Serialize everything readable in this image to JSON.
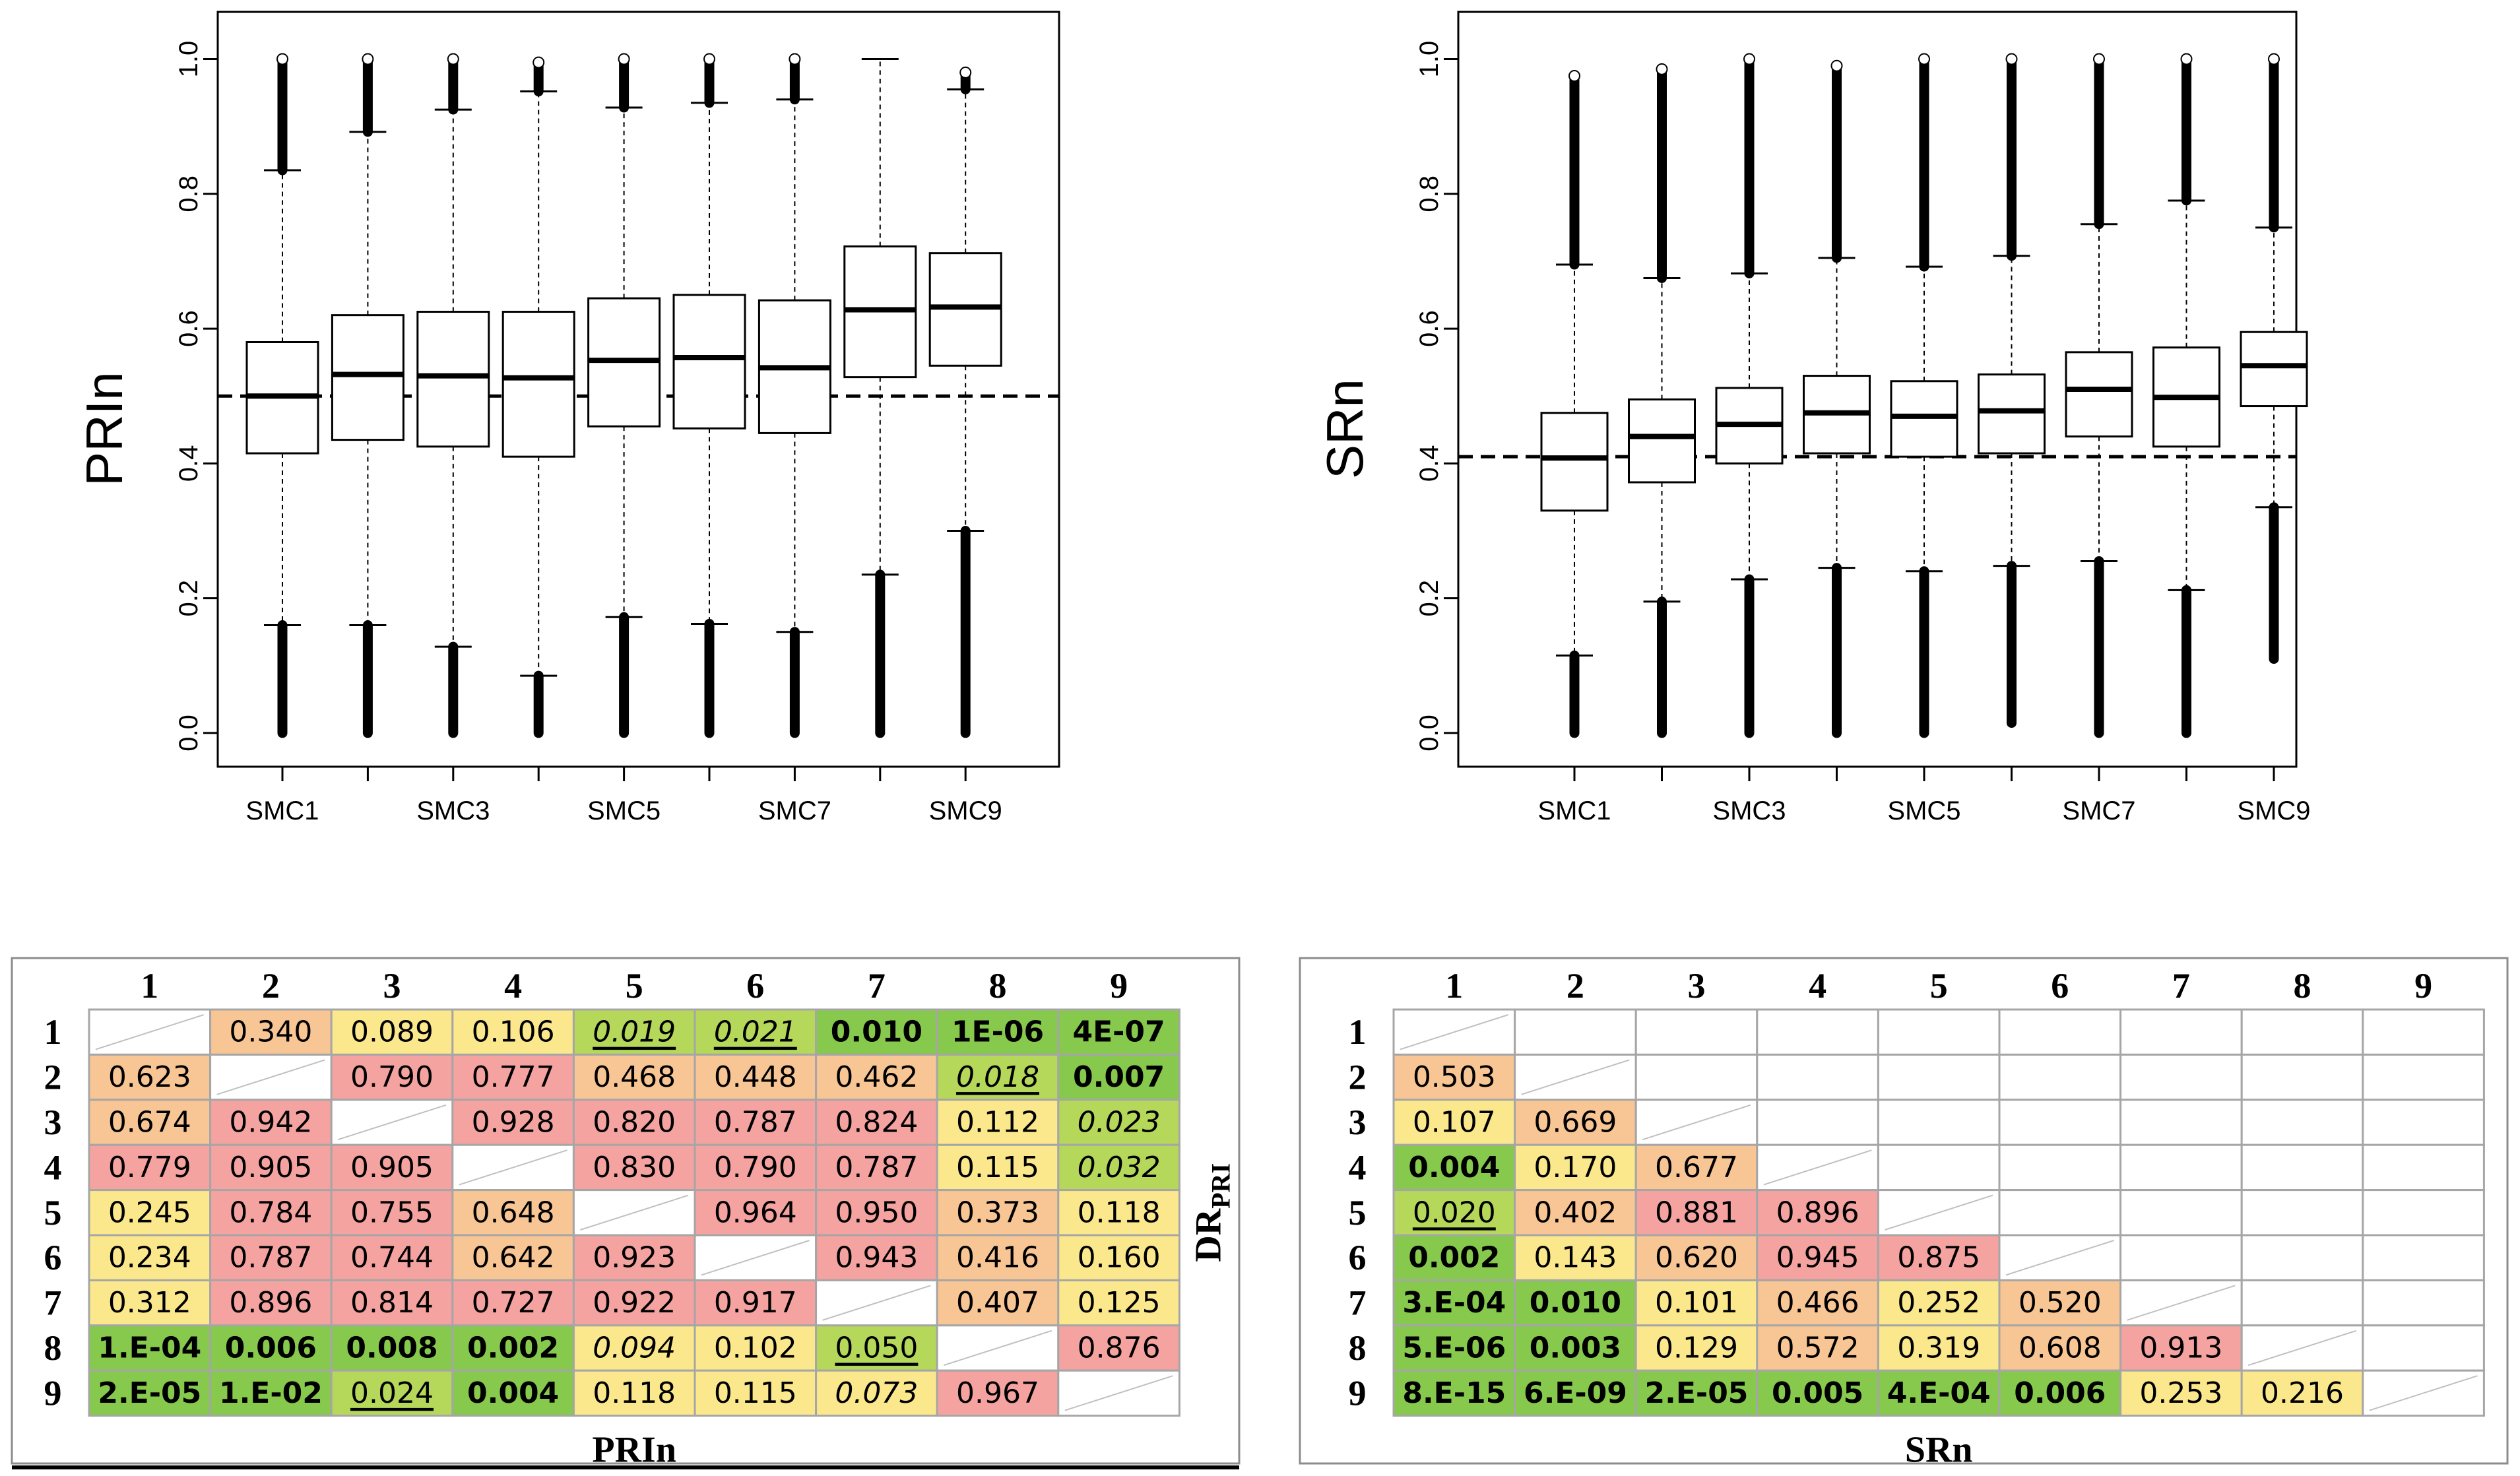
{
  "colors": {
    "red": "#f4a3a0",
    "orange": "#f8c594",
    "yellow": "#fce88c",
    "green": "#86c94c",
    "green_light": "#b5d85a",
    "white": "#ffffff",
    "grid": "#a6a6a6"
  },
  "chart_data": [
    {
      "type": "boxplot",
      "ylabel": "PRIn",
      "ylim": [
        -0.05,
        1.07
      ],
      "yticks": [
        "0.0",
        "0.2",
        "0.4",
        "0.6",
        "0.8",
        "1.0"
      ],
      "xtick_labels": [
        "SMC1",
        "",
        "SMC3",
        "",
        "SMC5",
        "",
        "SMC7",
        "",
        "SMC9"
      ],
      "reference_line": 0.5,
      "boxes": [
        {
          "q1": 0.415,
          "median": 0.5,
          "q3": 0.58,
          "whisker_low": 0.16,
          "whisker_high": 0.835,
          "out_low": [
            0.0,
            0.16
          ],
          "out_high": [
            0.835,
            1.0
          ]
        },
        {
          "q1": 0.435,
          "median": 0.532,
          "q3": 0.62,
          "whisker_low": 0.16,
          "whisker_high": 0.892,
          "out_low": [
            0.0,
            0.16
          ],
          "out_high": [
            0.892,
            1.0
          ]
        },
        {
          "q1": 0.425,
          "median": 0.53,
          "q3": 0.625,
          "whisker_low": 0.128,
          "whisker_high": 0.925,
          "out_low": [
            0.0,
            0.128
          ],
          "out_high": [
            0.925,
            1.0
          ]
        },
        {
          "q1": 0.41,
          "median": 0.527,
          "q3": 0.625,
          "whisker_low": 0.085,
          "whisker_high": 0.952,
          "out_low": [
            0.0,
            0.085
          ],
          "out_high": [
            0.952,
            0.995
          ]
        },
        {
          "q1": 0.455,
          "median": 0.553,
          "q3": 0.645,
          "whisker_low": 0.172,
          "whisker_high": 0.928,
          "out_low": [
            0.0,
            0.172
          ],
          "out_high": [
            0.928,
            1.0
          ]
        },
        {
          "q1": 0.452,
          "median": 0.557,
          "q3": 0.65,
          "whisker_low": 0.162,
          "whisker_high": 0.935,
          "out_low": [
            0.0,
            0.162
          ],
          "out_high": [
            0.935,
            1.0
          ]
        },
        {
          "q1": 0.445,
          "median": 0.542,
          "q3": 0.642,
          "whisker_low": 0.15,
          "whisker_high": 0.94,
          "out_low": [
            0.0,
            0.15
          ],
          "out_high": [
            0.94,
            1.0
          ]
        },
        {
          "q1": 0.528,
          "median": 0.628,
          "q3": 0.722,
          "whisker_low": 0.235,
          "whisker_high": 1.0,
          "out_low": [
            0.0,
            0.235
          ],
          "out_high": []
        },
        {
          "q1": 0.545,
          "median": 0.632,
          "q3": 0.712,
          "whisker_low": 0.3,
          "whisker_high": 0.955,
          "out_low": [
            0.0,
            0.3
          ],
          "out_high": [
            0.955,
            0.98
          ]
        }
      ]
    },
    {
      "type": "boxplot",
      "ylabel": "SRn",
      "ylim": [
        -0.05,
        1.07
      ],
      "yticks": [
        "0.0",
        "0.2",
        "0.4",
        "0.6",
        "0.8",
        "1.0"
      ],
      "xtick_labels": [
        "SMC1",
        "",
        "SMC3",
        "",
        "SMC5",
        "",
        "SMC7",
        "",
        "SMC9"
      ],
      "reference_line": 0.41,
      "boxes": [
        {
          "q1": 0.33,
          "median": 0.408,
          "q3": 0.475,
          "whisker_low": 0.115,
          "whisker_high": 0.695,
          "out_low": [
            0.0,
            0.115
          ],
          "out_high": [
            0.695,
            0.975
          ]
        },
        {
          "q1": 0.372,
          "median": 0.44,
          "q3": 0.495,
          "whisker_low": 0.195,
          "whisker_high": 0.675,
          "out_low": [
            0.0,
            0.195
          ],
          "out_high": [
            0.675,
            0.985
          ]
        },
        {
          "q1": 0.4,
          "median": 0.458,
          "q3": 0.512,
          "whisker_low": 0.228,
          "whisker_high": 0.682,
          "out_low": [
            0.0,
            0.228
          ],
          "out_high": [
            0.682,
            1.0
          ]
        },
        {
          "q1": 0.415,
          "median": 0.475,
          "q3": 0.53,
          "whisker_low": 0.245,
          "whisker_high": 0.705,
          "out_low": [
            0.0,
            0.245
          ],
          "out_high": [
            0.705,
            0.99
          ]
        },
        {
          "q1": 0.41,
          "median": 0.47,
          "q3": 0.522,
          "whisker_low": 0.24,
          "whisker_high": 0.692,
          "out_low": [
            0.0,
            0.24
          ],
          "out_high": [
            0.692,
            1.0
          ]
        },
        {
          "q1": 0.415,
          "median": 0.478,
          "q3": 0.532,
          "whisker_low": 0.248,
          "whisker_high": 0.708,
          "out_low": [
            0.015,
            0.248
          ],
          "out_high": [
            0.708,
            1.0
          ]
        },
        {
          "q1": 0.44,
          "median": 0.51,
          "q3": 0.565,
          "whisker_low": 0.255,
          "whisker_high": 0.755,
          "out_low": [
            0.0,
            0.255
          ],
          "out_high": [
            0.755,
            1.0
          ]
        },
        {
          "q1": 0.425,
          "median": 0.498,
          "q3": 0.572,
          "whisker_low": 0.212,
          "whisker_high": 0.79,
          "out_low": [
            0.0,
            0.212
          ],
          "out_high": [
            0.79,
            1.0
          ]
        },
        {
          "q1": 0.485,
          "median": 0.545,
          "q3": 0.595,
          "whisker_low": 0.335,
          "whisker_high": 0.75,
          "out_low": [
            0.11,
            0.335
          ],
          "out_high": [
            0.75,
            1.0
          ]
        }
      ]
    },
    {
      "type": "table",
      "title": "",
      "caption": "PRIn",
      "side_label": "DR",
      "side_label_sub": "PRI",
      "col_headers": [
        "1",
        "2",
        "3",
        "4",
        "5",
        "6",
        "7",
        "8",
        "9"
      ],
      "row_headers": [
        "1",
        "2",
        "3",
        "4",
        "5",
        "6",
        "7",
        "8",
        "9"
      ],
      "rows": [
        [
          {
            "diag": true
          },
          {
            "v": "0.340",
            "c": "orange"
          },
          {
            "v": "0.089",
            "c": "yellow"
          },
          {
            "v": "0.106",
            "c": "yellow"
          },
          {
            "v": "0.019",
            "c": "green_light",
            "i": true,
            "u": true
          },
          {
            "v": "0.021",
            "c": "green_light",
            "i": true,
            "u": true
          },
          {
            "v": "0.010",
            "c": "green",
            "b": true
          },
          {
            "v": "1E-06",
            "c": "green",
            "b": true
          },
          {
            "v": "4E-07",
            "c": "green",
            "b": true
          }
        ],
        [
          {
            "v": "0.623",
            "c": "orange"
          },
          {
            "diag": true
          },
          {
            "v": "0.790",
            "c": "red"
          },
          {
            "v": "0.777",
            "c": "red"
          },
          {
            "v": "0.468",
            "c": "orange"
          },
          {
            "v": "0.448",
            "c": "orange"
          },
          {
            "v": "0.462",
            "c": "orange"
          },
          {
            "v": "0.018",
            "c": "green_light",
            "i": true,
            "u": true
          },
          {
            "v": "0.007",
            "c": "green",
            "b": true
          }
        ],
        [
          {
            "v": "0.674",
            "c": "orange"
          },
          {
            "v": "0.942",
            "c": "red"
          },
          {
            "diag": true
          },
          {
            "v": "0.928",
            "c": "red"
          },
          {
            "v": "0.820",
            "c": "red"
          },
          {
            "v": "0.787",
            "c": "red"
          },
          {
            "v": "0.824",
            "c": "red"
          },
          {
            "v": "0.112",
            "c": "yellow"
          },
          {
            "v": "0.023",
            "c": "green_light",
            "i": true
          }
        ],
        [
          {
            "v": "0.779",
            "c": "red"
          },
          {
            "v": "0.905",
            "c": "red"
          },
          {
            "v": "0.905",
            "c": "red"
          },
          {
            "diag": true
          },
          {
            "v": "0.830",
            "c": "red"
          },
          {
            "v": "0.790",
            "c": "red"
          },
          {
            "v": "0.787",
            "c": "red"
          },
          {
            "v": "0.115",
            "c": "yellow"
          },
          {
            "v": "0.032",
            "c": "green_light",
            "i": true
          }
        ],
        [
          {
            "v": "0.245",
            "c": "yellow"
          },
          {
            "v": "0.784",
            "c": "red"
          },
          {
            "v": "0.755",
            "c": "red"
          },
          {
            "v": "0.648",
            "c": "orange"
          },
          {
            "diag": true
          },
          {
            "v": "0.964",
            "c": "red"
          },
          {
            "v": "0.950",
            "c": "red"
          },
          {
            "v": "0.373",
            "c": "orange"
          },
          {
            "v": "0.118",
            "c": "yellow"
          }
        ],
        [
          {
            "v": "0.234",
            "c": "yellow"
          },
          {
            "v": "0.787",
            "c": "red"
          },
          {
            "v": "0.744",
            "c": "red"
          },
          {
            "v": "0.642",
            "c": "orange"
          },
          {
            "v": "0.923",
            "c": "red"
          },
          {
            "diag": true
          },
          {
            "v": "0.943",
            "c": "red"
          },
          {
            "v": "0.416",
            "c": "orange"
          },
          {
            "v": "0.160",
            "c": "yellow"
          }
        ],
        [
          {
            "v": "0.312",
            "c": "yellow"
          },
          {
            "v": "0.896",
            "c": "red"
          },
          {
            "v": "0.814",
            "c": "red"
          },
          {
            "v": "0.727",
            "c": "red"
          },
          {
            "v": "0.922",
            "c": "red"
          },
          {
            "v": "0.917",
            "c": "red"
          },
          {
            "diag": true
          },
          {
            "v": "0.407",
            "c": "orange"
          },
          {
            "v": "0.125",
            "c": "yellow"
          }
        ],
        [
          {
            "v": "1.E-04",
            "c": "green",
            "b": true
          },
          {
            "v": "0.006",
            "c": "green",
            "b": true
          },
          {
            "v": "0.008",
            "c": "green",
            "b": true
          },
          {
            "v": "0.002",
            "c": "green",
            "b": true
          },
          {
            "v": "0.094",
            "c": "yellow",
            "i": true
          },
          {
            "v": "0.102",
            "c": "yellow"
          },
          {
            "v": "0.050",
            "c": "green_light",
            "u": true
          },
          {
            "diag": true
          },
          {
            "v": "0.876",
            "c": "red"
          }
        ],
        [
          {
            "v": "2.E-05",
            "c": "green",
            "b": true
          },
          {
            "v": "1.E-02",
            "c": "green",
            "b": true
          },
          {
            "v": "0.024",
            "c": "green_light",
            "u": true
          },
          {
            "v": "0.004",
            "c": "green",
            "b": true
          },
          {
            "v": "0.118",
            "c": "yellow"
          },
          {
            "v": "0.115",
            "c": "yellow"
          },
          {
            "v": "0.073",
            "c": "yellow",
            "i": true
          },
          {
            "v": "0.967",
            "c": "red"
          },
          {
            "diag": true
          }
        ]
      ]
    },
    {
      "type": "table",
      "title": "",
      "caption": "SRn",
      "col_headers": [
        "1",
        "2",
        "3",
        "4",
        "5",
        "6",
        "7",
        "8",
        "9"
      ],
      "row_headers": [
        "1",
        "2",
        "3",
        "4",
        "5",
        "6",
        "7",
        "8",
        "9"
      ],
      "rows": [
        [
          {
            "diag": true
          },
          {},
          {},
          {},
          {},
          {},
          {},
          {},
          {}
        ],
        [
          {
            "v": "0.503",
            "c": "orange"
          },
          {
            "diag": true
          },
          {},
          {},
          {},
          {},
          {},
          {},
          {}
        ],
        [
          {
            "v": "0.107",
            "c": "yellow"
          },
          {
            "v": "0.669",
            "c": "orange"
          },
          {
            "diag": true
          },
          {},
          {},
          {},
          {},
          {},
          {}
        ],
        [
          {
            "v": "0.004",
            "c": "green",
            "b": true
          },
          {
            "v": "0.170",
            "c": "yellow"
          },
          {
            "v": "0.677",
            "c": "orange"
          },
          {
            "diag": true
          },
          {},
          {},
          {},
          {},
          {}
        ],
        [
          {
            "v": "0.020",
            "c": "green_light",
            "u": true
          },
          {
            "v": "0.402",
            "c": "orange"
          },
          {
            "v": "0.881",
            "c": "red"
          },
          {
            "v": "0.896",
            "c": "red"
          },
          {
            "diag": true
          },
          {},
          {},
          {},
          {}
        ],
        [
          {
            "v": "0.002",
            "c": "green",
            "b": true
          },
          {
            "v": "0.143",
            "c": "yellow"
          },
          {
            "v": "0.620",
            "c": "orange"
          },
          {
            "v": "0.945",
            "c": "red"
          },
          {
            "v": "0.875",
            "c": "red"
          },
          {
            "diag": true
          },
          {},
          {},
          {}
        ],
        [
          {
            "v": "3.E-04",
            "c": "green",
            "b": true
          },
          {
            "v": "0.010",
            "c": "green",
            "b": true
          },
          {
            "v": "0.101",
            "c": "yellow"
          },
          {
            "v": "0.466",
            "c": "orange"
          },
          {
            "v": "0.252",
            "c": "yellow"
          },
          {
            "v": "0.520",
            "c": "orange"
          },
          {
            "diag": true
          },
          {},
          {}
        ],
        [
          {
            "v": "5.E-06",
            "c": "green",
            "b": true
          },
          {
            "v": "0.003",
            "c": "green",
            "b": true
          },
          {
            "v": "0.129",
            "c": "yellow"
          },
          {
            "v": "0.572",
            "c": "orange"
          },
          {
            "v": "0.319",
            "c": "yellow"
          },
          {
            "v": "0.608",
            "c": "orange"
          },
          {
            "v": "0.913",
            "c": "red"
          },
          {
            "diag": true
          },
          {}
        ],
        [
          {
            "v": "8.E-15",
            "c": "green",
            "b": true
          },
          {
            "v": "6.E-09",
            "c": "green",
            "b": true
          },
          {
            "v": "2.E-05",
            "c": "green",
            "b": true
          },
          {
            "v": "0.005",
            "c": "green",
            "b": true
          },
          {
            "v": "4.E-04",
            "c": "green",
            "b": true
          },
          {
            "v": "0.006",
            "c": "green",
            "b": true
          },
          {
            "v": "0.253",
            "c": "yellow"
          },
          {
            "v": "0.216",
            "c": "yellow"
          },
          {
            "diag": true
          }
        ]
      ]
    }
  ]
}
